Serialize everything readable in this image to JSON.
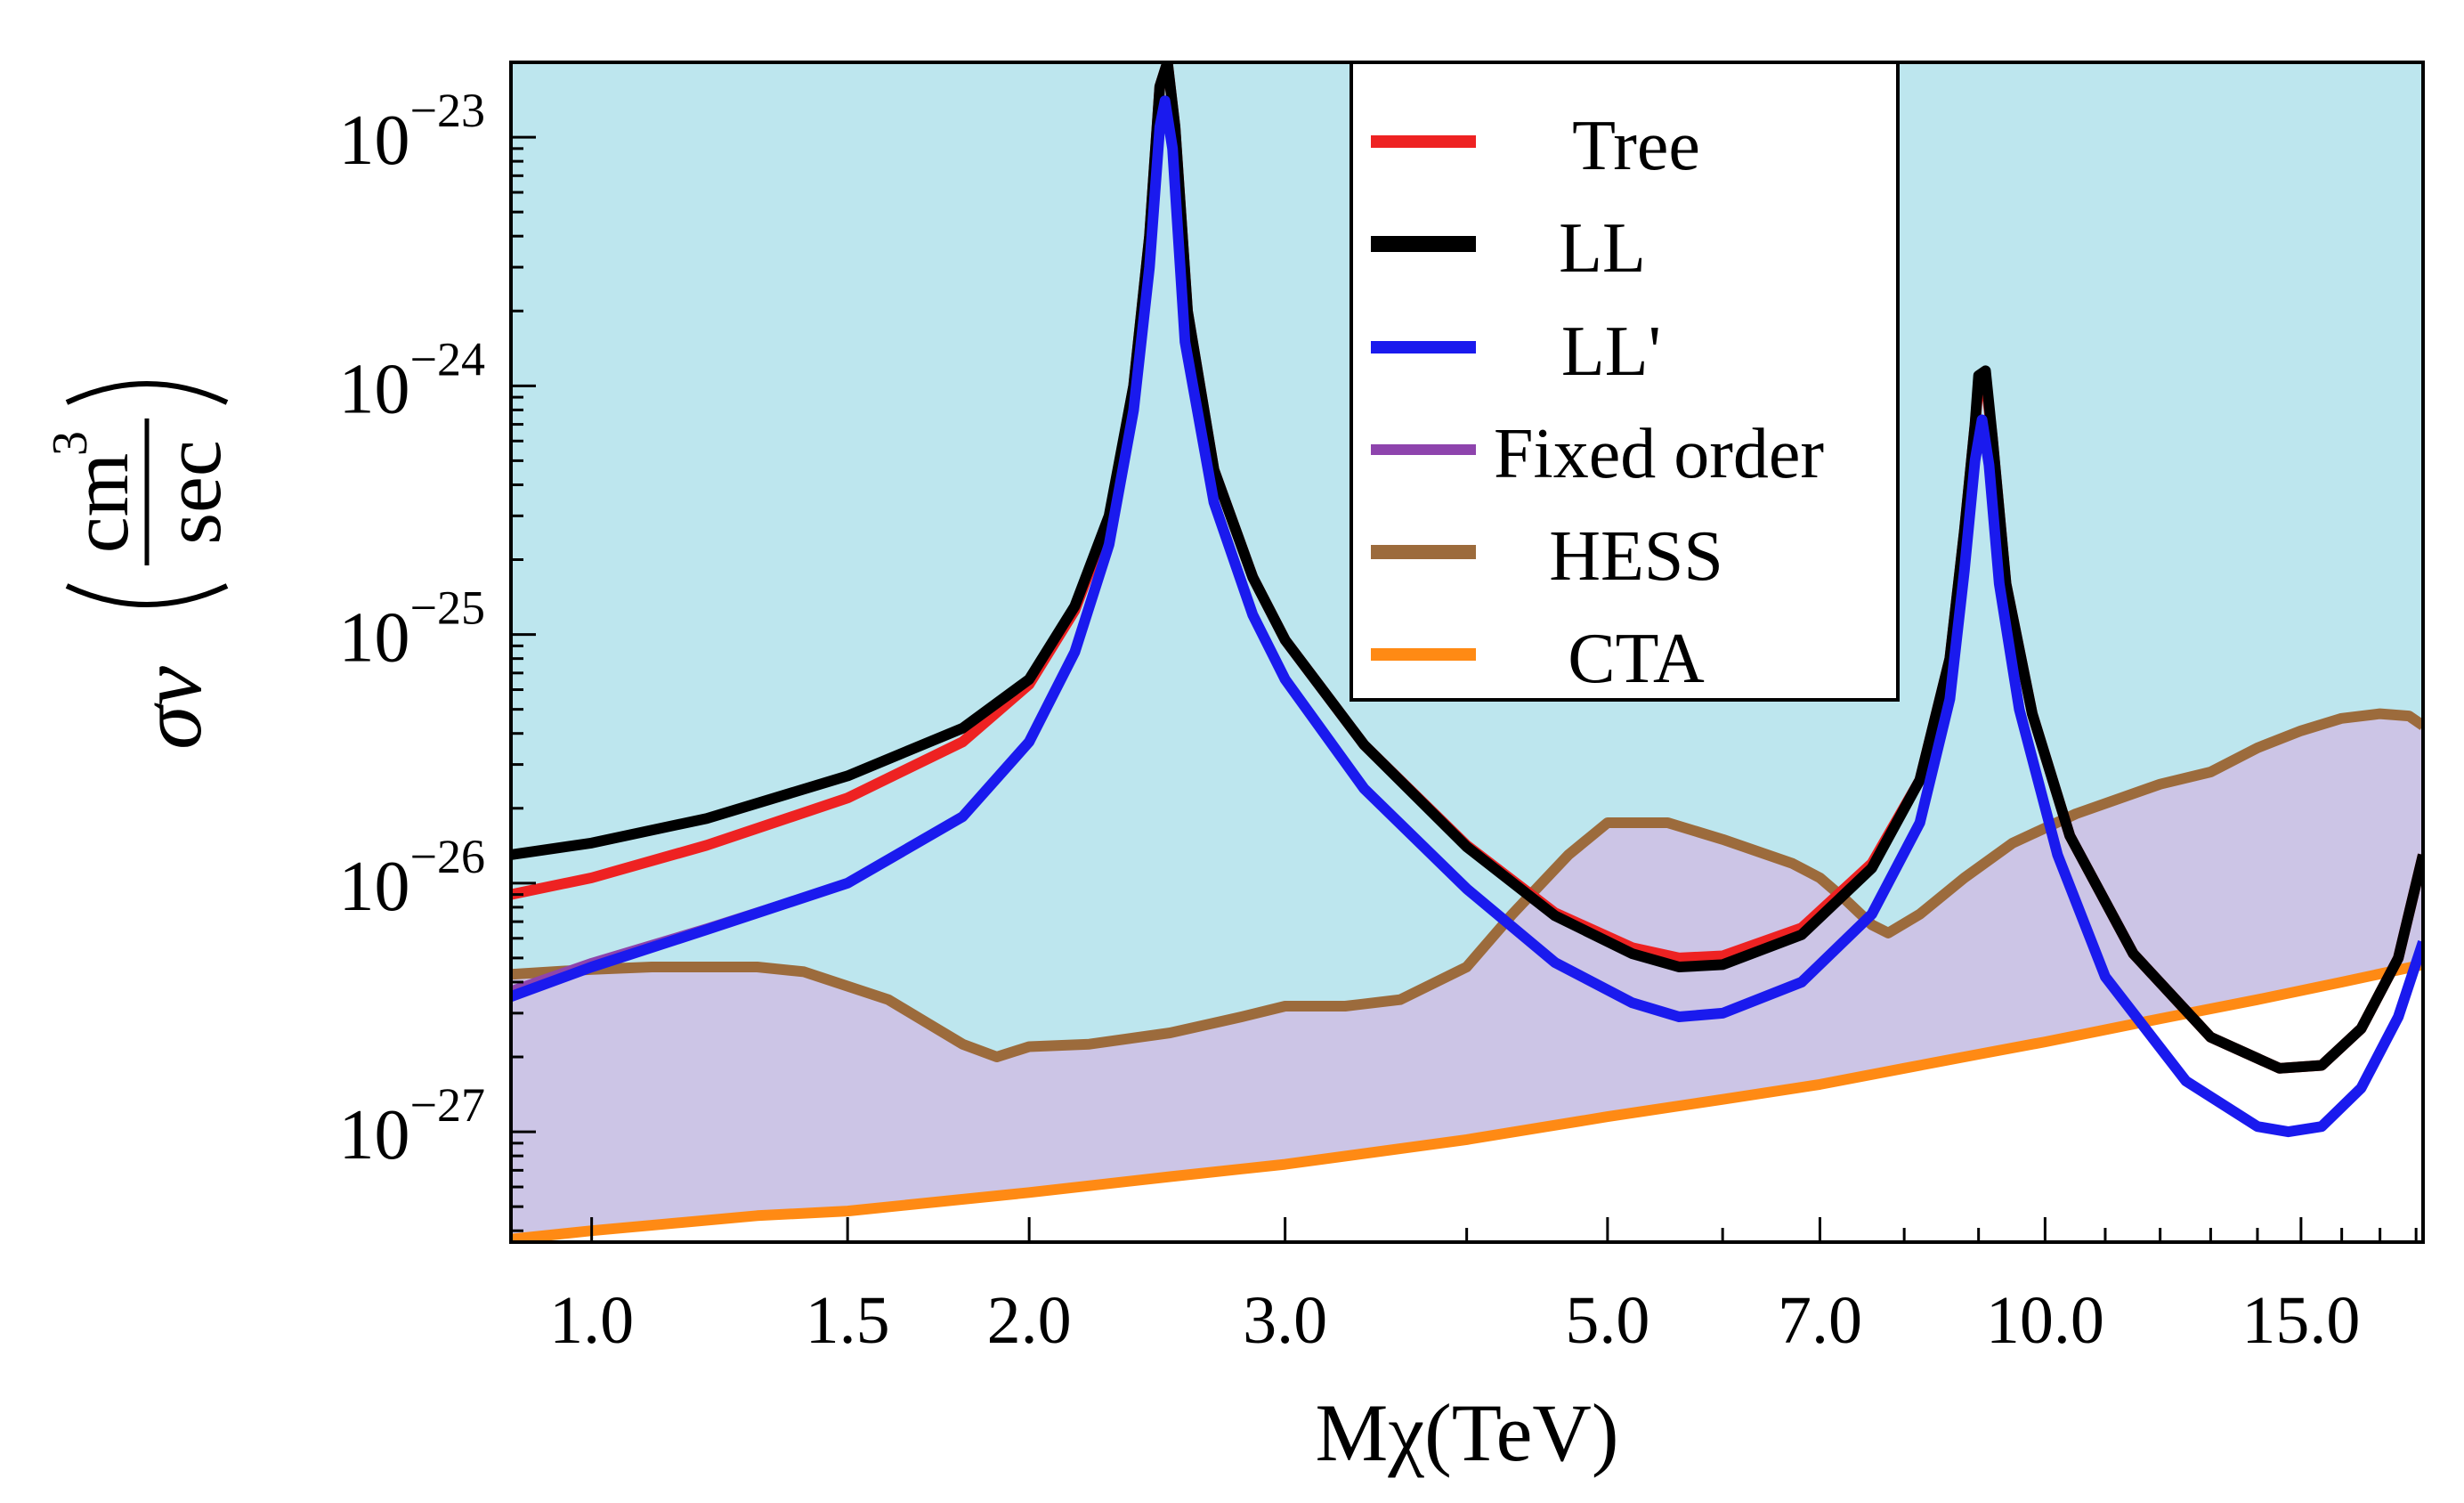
{
  "chart_data": {
    "type": "line",
    "xscale": "log",
    "yscale": "log",
    "xlim": [
      0.88,
      18.2
    ],
    "ylim": [
      3.6e-28,
      2e-23
    ],
    "xlabel": "Mχ(TeV)",
    "ylabel": {
      "prefix": "σv",
      "numerator": "cm",
      "numerator_exponent": "3",
      "denominator": "sec"
    },
    "xticks": [
      {
        "value": 1.0,
        "label": "1.0"
      },
      {
        "value": 1.5,
        "label": "1.5"
      },
      {
        "value": 2.0,
        "label": "2.0"
      },
      {
        "value": 3.0,
        "label": "3.0"
      },
      {
        "value": 5.0,
        "label": "5.0"
      },
      {
        "value": 7.0,
        "label": "7.0"
      },
      {
        "value": 10.0,
        "label": "10.0"
      },
      {
        "value": 15.0,
        "label": "15.0"
      }
    ],
    "xminor": [
      4,
      6,
      8,
      9,
      11,
      12,
      13,
      14,
      16,
      17,
      18
    ],
    "yticks": [
      {
        "value": 1e-27,
        "base": "10",
        "exp": "−27"
      },
      {
        "value": 1e-26,
        "base": "10",
        "exp": "−26"
      },
      {
        "value": 1e-25,
        "base": "10",
        "exp": "−25"
      },
      {
        "value": 1e-24,
        "base": "10",
        "exp": "−24"
      },
      {
        "value": 1e-23,
        "base": "10",
        "exp": "−23"
      }
    ],
    "excluded_region_color": "#bde6ee",
    "projected_region_color": "#ccc5e6",
    "series": [
      {
        "name": "Tree",
        "color": "#ee2222",
        "width": 12,
        "points": [
          [
            0.88,
            9e-27
          ],
          [
            1.0,
            1.05e-26
          ],
          [
            1.2,
            1.42e-26
          ],
          [
            1.5,
            2.2e-26
          ],
          [
            1.8,
            3.7e-26
          ],
          [
            2.0,
            6.3e-26
          ],
          [
            2.15,
            1.25e-25
          ],
          [
            2.27,
            2.9e-25
          ],
          [
            2.36,
            1e-24
          ],
          [
            2.42,
            4e-24
          ],
          [
            2.46,
            1.6e-23
          ],
          [
            2.49,
            2e-23
          ],
          [
            2.52,
            1.1e-23
          ],
          [
            2.57,
            2e-24
          ],
          [
            2.68,
            4.6e-25
          ],
          [
            2.85,
            1.7e-25
          ],
          [
            3.0,
            9.5e-26
          ],
          [
            3.4,
            3.6e-26
          ],
          [
            4.0,
            1.42e-26
          ],
          [
            4.6,
            7.6e-27
          ],
          [
            5.2,
            5.5e-27
          ],
          [
            5.6,
            5e-27
          ],
          [
            6.0,
            5.1e-27
          ],
          [
            6.8,
            6.6e-27
          ],
          [
            7.6,
            1.2e-26
          ],
          [
            8.2,
            2.6e-26
          ],
          [
            8.6,
            8e-26
          ],
          [
            8.8,
            2.6e-25
          ],
          [
            8.95,
            7e-25
          ],
          [
            9.0,
            1e-24
          ],
          [
            9.1,
            1.05e-24
          ],
          [
            9.2,
            6.2e-25
          ],
          [
            9.4,
            1.6e-25
          ],
          [
            9.8,
            4.8e-26
          ],
          [
            10.4,
            1.55e-26
          ],
          [
            11.5,
            5.2e-27
          ],
          [
            13.0,
            2.4e-27
          ],
          [
            14.5,
            1.8e-27
          ],
          [
            15.5,
            1.85e-27
          ],
          [
            16.5,
            2.6e-27
          ],
          [
            17.5,
            5e-27
          ],
          [
            18.2,
            1.3e-26
          ]
        ]
      },
      {
        "name": "LL",
        "color": "#000000",
        "width": 12,
        "points": [
          [
            0.88,
            1.3e-26
          ],
          [
            1.0,
            1.45e-26
          ],
          [
            1.2,
            1.82e-26
          ],
          [
            1.5,
            2.7e-26
          ],
          [
            1.8,
            4.2e-26
          ],
          [
            2.0,
            6.6e-26
          ],
          [
            2.15,
            1.3e-25
          ],
          [
            2.27,
            3e-25
          ],
          [
            2.36,
            1e-24
          ],
          [
            2.42,
            4e-24
          ],
          [
            2.46,
            1.6e-23
          ],
          [
            2.49,
            2e-23
          ],
          [
            2.52,
            1.1e-23
          ],
          [
            2.57,
            2e-24
          ],
          [
            2.68,
            4.6e-25
          ],
          [
            2.85,
            1.7e-25
          ],
          [
            3.0,
            9.5e-26
          ],
          [
            3.4,
            3.6e-26
          ],
          [
            4.0,
            1.4e-26
          ],
          [
            4.6,
            7.4e-27
          ],
          [
            5.2,
            5.2e-27
          ],
          [
            5.6,
            4.6e-27
          ],
          [
            6.0,
            4.7e-27
          ],
          [
            6.8,
            6.2e-27
          ],
          [
            7.6,
            1.15e-26
          ],
          [
            8.2,
            2.6e-26
          ],
          [
            8.6,
            8e-26
          ],
          [
            8.8,
            2.6e-25
          ],
          [
            8.95,
            7e-25
          ],
          [
            9.0,
            1.1e-24
          ],
          [
            9.1,
            1.15e-24
          ],
          [
            9.2,
            6.2e-25
          ],
          [
            9.4,
            1.6e-25
          ],
          [
            9.8,
            4.8e-26
          ],
          [
            10.4,
            1.55e-26
          ],
          [
            11.5,
            5.2e-27
          ],
          [
            13.0,
            2.4e-27
          ],
          [
            14.5,
            1.8e-27
          ],
          [
            15.5,
            1.85e-27
          ],
          [
            16.5,
            2.6e-27
          ],
          [
            17.5,
            5e-27
          ],
          [
            18.2,
            1.3e-26
          ]
        ]
      },
      {
        "name": "Fixed order",
        "color": "#8e44ad",
        "width": 10,
        "points": [
          [
            0.88,
            3.7e-27
          ],
          [
            1.0,
            4.8e-27
          ],
          [
            1.2,
            6.6e-27
          ],
          [
            1.5,
            1e-26
          ],
          [
            1.8,
            1.85e-26
          ],
          [
            2.0,
            3.7e-26
          ],
          [
            2.15,
            8.5e-26
          ],
          [
            2.27,
            2.3e-25
          ]
        ]
      },
      {
        "name": "LL'",
        "color": "#1a1aee",
        "width": 12,
        "points": [
          [
            0.88,
            3.5e-27
          ],
          [
            1.0,
            4.6e-27
          ],
          [
            1.2,
            6.5e-27
          ],
          [
            1.5,
            1e-26
          ],
          [
            1.8,
            1.85e-26
          ],
          [
            2.0,
            3.7e-26
          ],
          [
            2.15,
            8.5e-26
          ],
          [
            2.27,
            2.3e-25
          ],
          [
            2.36,
            8e-25
          ],
          [
            2.42,
            3e-24
          ],
          [
            2.46,
            1.1e-23
          ],
          [
            2.48,
            1.4e-23
          ],
          [
            2.51,
            9e-24
          ],
          [
            2.56,
            1.5e-24
          ],
          [
            2.68,
            3.4e-25
          ],
          [
            2.85,
            1.2e-25
          ],
          [
            3.0,
            6.6e-26
          ],
          [
            3.4,
            2.4e-26
          ],
          [
            4.0,
            9.5e-27
          ],
          [
            4.6,
            4.8e-27
          ],
          [
            5.2,
            3.3e-27
          ],
          [
            5.6,
            2.9e-27
          ],
          [
            6.0,
            3e-27
          ],
          [
            6.8,
            4e-27
          ],
          [
            7.6,
            7.5e-27
          ],
          [
            8.2,
            1.75e-26
          ],
          [
            8.6,
            5.5e-26
          ],
          [
            8.8,
            1.8e-25
          ],
          [
            8.95,
            5e-25
          ],
          [
            9.05,
            7.3e-25
          ],
          [
            9.15,
            4.8e-25
          ],
          [
            9.3,
            1.6e-25
          ],
          [
            9.6,
            5e-26
          ],
          [
            10.2,
            1.3e-26
          ],
          [
            11.0,
            4.2e-27
          ],
          [
            12.5,
            1.6e-27
          ],
          [
            14.0,
            1.05e-27
          ],
          [
            14.7,
            1e-27
          ],
          [
            15.5,
            1.05e-27
          ],
          [
            16.5,
            1.5e-27
          ],
          [
            17.5,
            2.9e-27
          ],
          [
            18.2,
            5.8e-27
          ]
        ]
      },
      {
        "name": "HESS",
        "color": "#9c6b3c",
        "width": 12,
        "points": [
          [
            0.88,
            4.3e-27
          ],
          [
            1.0,
            4.5e-27
          ],
          [
            1.1,
            4.6e-27
          ],
          [
            1.3,
            4.6e-27
          ],
          [
            1.4,
            4.4e-27
          ],
          [
            1.6,
            3.4e-27
          ],
          [
            1.8,
            2.25e-27
          ],
          [
            1.9,
            2e-27
          ],
          [
            2.0,
            2.2e-27
          ],
          [
            2.2,
            2.25e-27
          ],
          [
            2.5,
            2.5e-27
          ],
          [
            2.8,
            2.9e-27
          ],
          [
            3.0,
            3.2e-27
          ],
          [
            3.3,
            3.2e-27
          ],
          [
            3.6,
            3.4e-27
          ],
          [
            4.0,
            4.6e-27
          ],
          [
            4.3,
            7.5e-27
          ],
          [
            4.7,
            1.3e-26
          ],
          [
            5.0,
            1.75e-26
          ],
          [
            5.5,
            1.75e-26
          ],
          [
            6.0,
            1.5e-26
          ],
          [
            6.7,
            1.2e-26
          ],
          [
            7.0,
            1.05e-26
          ],
          [
            7.3,
            8.5e-27
          ],
          [
            7.6,
            6.8e-27
          ],
          [
            7.8,
            6.3e-27
          ],
          [
            8.2,
            7.5e-27
          ],
          [
            8.8,
            1.05e-26
          ],
          [
            9.5,
            1.45e-26
          ],
          [
            10.5,
            1.9e-26
          ],
          [
            12.0,
            2.5e-26
          ],
          [
            13.0,
            2.8e-26
          ],
          [
            14.0,
            3.5e-26
          ],
          [
            15.0,
            4.1e-26
          ],
          [
            16.0,
            4.6e-26
          ],
          [
            17.0,
            4.8e-26
          ],
          [
            17.8,
            4.7e-26
          ],
          [
            18.2,
            4.3e-26
          ]
        ]
      },
      {
        "name": "CTA",
        "color": "#ff8a14",
        "width": 12,
        "points": [
          [
            0.88,
            3.7e-28
          ],
          [
            1.0,
            4e-28
          ],
          [
            1.3,
            4.6e-28
          ],
          [
            1.5,
            4.8e-28
          ],
          [
            2.0,
            5.7e-28
          ],
          [
            2.5,
            6.6e-28
          ],
          [
            3.0,
            7.4e-28
          ],
          [
            4.0,
            9.3e-28
          ],
          [
            5.0,
            1.15e-27
          ],
          [
            6.0,
            1.35e-27
          ],
          [
            7.0,
            1.55e-27
          ],
          [
            8.0,
            1.8e-27
          ],
          [
            9.0,
            2.05e-27
          ],
          [
            10.0,
            2.3e-27
          ],
          [
            12.0,
            2.85e-27
          ],
          [
            14.0,
            3.4e-27
          ],
          [
            16.0,
            4e-27
          ],
          [
            18.2,
            4.7e-27
          ]
        ]
      }
    ],
    "legend": {
      "position": "top-center",
      "entries": [
        {
          "label": "Tree",
          "color": "#ee2222"
        },
        {
          "label": "LL",
          "color": "#000000"
        },
        {
          "label": "LL'",
          "color": "#1a1aee"
        },
        {
          "label": "Fixed order",
          "color": "#8e44ad"
        },
        {
          "label": "HESS",
          "color": "#9c6b3c"
        },
        {
          "label": "CTA",
          "color": "#ff8a14"
        }
      ]
    }
  }
}
